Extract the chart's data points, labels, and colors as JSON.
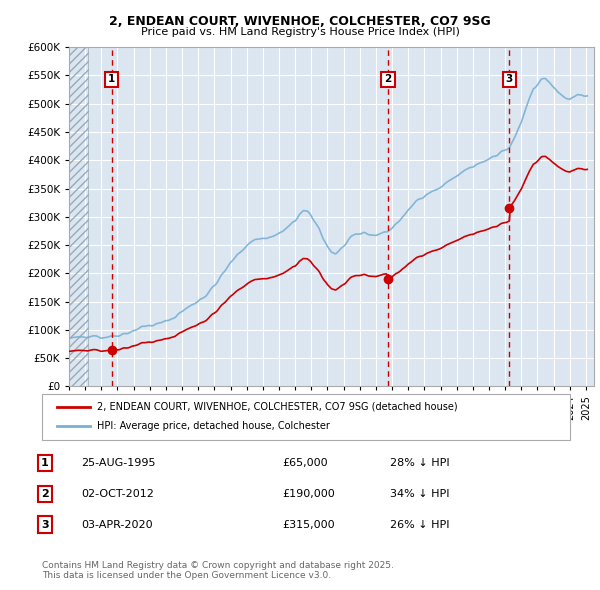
{
  "title": "2, ENDEAN COURT, WIVENHOE, COLCHESTER, CO7 9SG",
  "subtitle": "Price paid vs. HM Land Registry's House Price Index (HPI)",
  "ylim": [
    0,
    600000
  ],
  "yticks": [
    0,
    50000,
    100000,
    150000,
    200000,
    250000,
    300000,
    350000,
    400000,
    450000,
    500000,
    550000,
    600000
  ],
  "ytick_labels": [
    "£0",
    "£50K",
    "£100K",
    "£150K",
    "£200K",
    "£250K",
    "£300K",
    "£350K",
    "£400K",
    "£450K",
    "£500K",
    "£550K",
    "£600K"
  ],
  "xlim_start": 1993.0,
  "xlim_end": 2025.5,
  "background_color": "#ffffff",
  "plot_bg_color": "#dce6f1",
  "grid_color": "#ffffff",
  "sale_dates": [
    1995.647,
    2012.748,
    2020.253
  ],
  "sale_prices": [
    65000,
    190000,
    315000
  ],
  "sale_labels": [
    "1",
    "2",
    "3"
  ],
  "sale_date_strs": [
    "25-AUG-1995",
    "02-OCT-2012",
    "03-APR-2020"
  ],
  "sale_price_strs": [
    "£65,000",
    "£190,000",
    "£315,000"
  ],
  "sale_hpi_strs": [
    "28% ↓ HPI",
    "34% ↓ HPI",
    "26% ↓ HPI"
  ],
  "red_line_color": "#cc0000",
  "blue_line_color": "#7ab0d4",
  "footnote": "Contains HM Land Registry data © Crown copyright and database right 2025.\nThis data is licensed under the Open Government Licence v3.0.",
  "legend_label_red": "2, ENDEAN COURT, WIVENHOE, COLCHESTER, CO7 9SG (detached house)",
  "legend_label_blue": "HPI: Average price, detached house, Colchester"
}
